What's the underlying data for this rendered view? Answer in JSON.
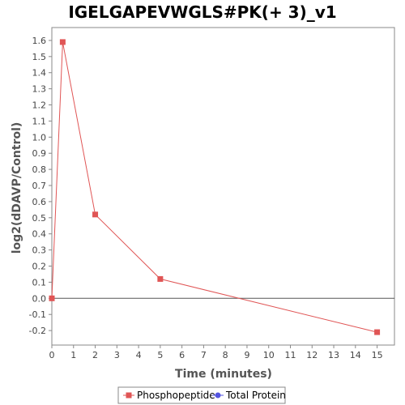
{
  "chart_data": {
    "type": "line",
    "title": "IGELGAPEVWGLS#PK(+ 3)_v1",
    "xlabel": "Time (minutes)",
    "ylabel": "log2(dDAVP/Control)",
    "xlim": [
      0,
      15.8
    ],
    "ylim": [
      -0.29,
      1.68
    ],
    "x_ticks": [
      0,
      1,
      2,
      3,
      4,
      5,
      6,
      7,
      8,
      9,
      10,
      11,
      12,
      13,
      14,
      15
    ],
    "y_ticks": [
      -0.2,
      -0.1,
      0.0,
      0.1,
      0.2,
      0.3,
      0.4,
      0.5,
      0.6,
      0.7,
      0.8,
      0.9,
      1.0,
      1.1,
      1.2,
      1.3,
      1.4,
      1.5,
      1.6
    ],
    "y_tick_labels": [
      "-0.2",
      "-0.1",
      "0.0",
      "0.1",
      "0.2",
      "0.3",
      "0.4",
      "0.5",
      "0.6",
      "0.7",
      "0.8",
      "0.9",
      "1.0",
      "1.1",
      "1.2",
      "1.3",
      "1.4",
      "1.5",
      "1.6"
    ],
    "grid": false,
    "zero_line": true,
    "legend_position": "bottom",
    "series": [
      {
        "name": "Phosphopeptide",
        "color": "#e05555",
        "marker": "square",
        "x": [
          0,
          0.5,
          2,
          5,
          15
        ],
        "y": [
          0.0,
          1.59,
          0.52,
          0.12,
          -0.21
        ]
      },
      {
        "name": "Total Protein",
        "color": "#5555e0",
        "marker": "circle",
        "x": [],
        "y": []
      }
    ]
  }
}
